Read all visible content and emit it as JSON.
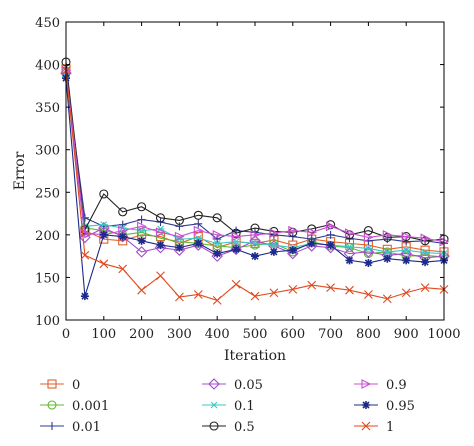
{
  "chart_data": {
    "type": "line",
    "title": "",
    "xlabel": "Iteration",
    "ylabel": "Error",
    "xlim": [
      0,
      1000
    ],
    "ylim": [
      100,
      450
    ],
    "xticks": [
      0,
      100,
      200,
      300,
      400,
      500,
      600,
      700,
      800,
      900,
      1000
    ],
    "yticks": [
      100,
      150,
      200,
      250,
      300,
      350,
      400,
      450
    ],
    "grid": false,
    "legend_position": "bottom",
    "x": [
      0,
      50,
      100,
      150,
      200,
      250,
      300,
      350,
      400,
      450,
      500,
      550,
      600,
      650,
      700,
      750,
      800,
      850,
      900,
      950,
      1000
    ],
    "series": [
      {
        "name": "0",
        "color": "#e0622b",
        "marker": "square",
        "values": [
          395,
          205,
          195,
          193,
          200,
          198,
          190,
          198,
          185,
          192,
          190,
          194,
          188,
          195,
          192,
          190,
          188,
          183,
          186,
          182,
          180
        ]
      },
      {
        "name": "0.001",
        "color": "#5db832",
        "marker": "circle",
        "values": [
          392,
          208,
          205,
          200,
          203,
          196,
          192,
          190,
          187,
          185,
          188,
          190,
          180,
          192,
          187,
          185,
          178,
          180,
          175,
          176,
          174
        ]
      },
      {
        "name": "0.01",
        "color": "#2e3b8f",
        "marker": "plus",
        "values": [
          388,
          220,
          210,
          212,
          218,
          215,
          210,
          213,
          195,
          205,
          203,
          200,
          198,
          195,
          200,
          196,
          193,
          195,
          192,
          193,
          190
        ]
      },
      {
        "name": "0.05",
        "color": "#a24cc9",
        "marker": "diamond",
        "values": [
          390,
          197,
          208,
          198,
          180,
          185,
          182,
          188,
          175,
          183,
          193,
          187,
          178,
          187,
          185,
          178,
          180,
          176,
          178,
          173,
          175
        ]
      },
      {
        "name": "0.1",
        "color": "#3cc6c6",
        "marker": "asterisk",
        "values": [
          386,
          210,
          212,
          208,
          205,
          207,
          195,
          196,
          190,
          192,
          190,
          188,
          185,
          190,
          188,
          186,
          184,
          180,
          182,
          179,
          178
        ]
      },
      {
        "name": "0.5",
        "color": "#222222",
        "marker": "circle",
        "values": [
          403,
          206,
          248,
          227,
          233,
          220,
          217,
          223,
          220,
          202,
          208,
          204,
          203,
          207,
          212,
          200,
          205,
          197,
          198,
          193,
          195
        ]
      },
      {
        "name": "0.9",
        "color": "#c84fd0",
        "marker": "triangle-right",
        "values": [
          393,
          202,
          200,
          205,
          210,
          203,
          198,
          205,
          200,
          198,
          200,
          202,
          205,
          203,
          210,
          202,
          197,
          200,
          198,
          196,
          192
        ]
      },
      {
        "name": "0.95",
        "color": "#1c2a8a",
        "marker": "star",
        "values": [
          384,
          128,
          200,
          198,
          193,
          188,
          185,
          190,
          178,
          183,
          175,
          180,
          182,
          190,
          188,
          170,
          167,
          172,
          170,
          168,
          170
        ]
      },
      {
        "name": "1",
        "color": "#e04a20",
        "marker": "x",
        "values": [
          393,
          176,
          166,
          160,
          135,
          152,
          127,
          130,
          123,
          142,
          128,
          132,
          136,
          141,
          138,
          135,
          130,
          125,
          132,
          138,
          136
        ]
      }
    ]
  }
}
